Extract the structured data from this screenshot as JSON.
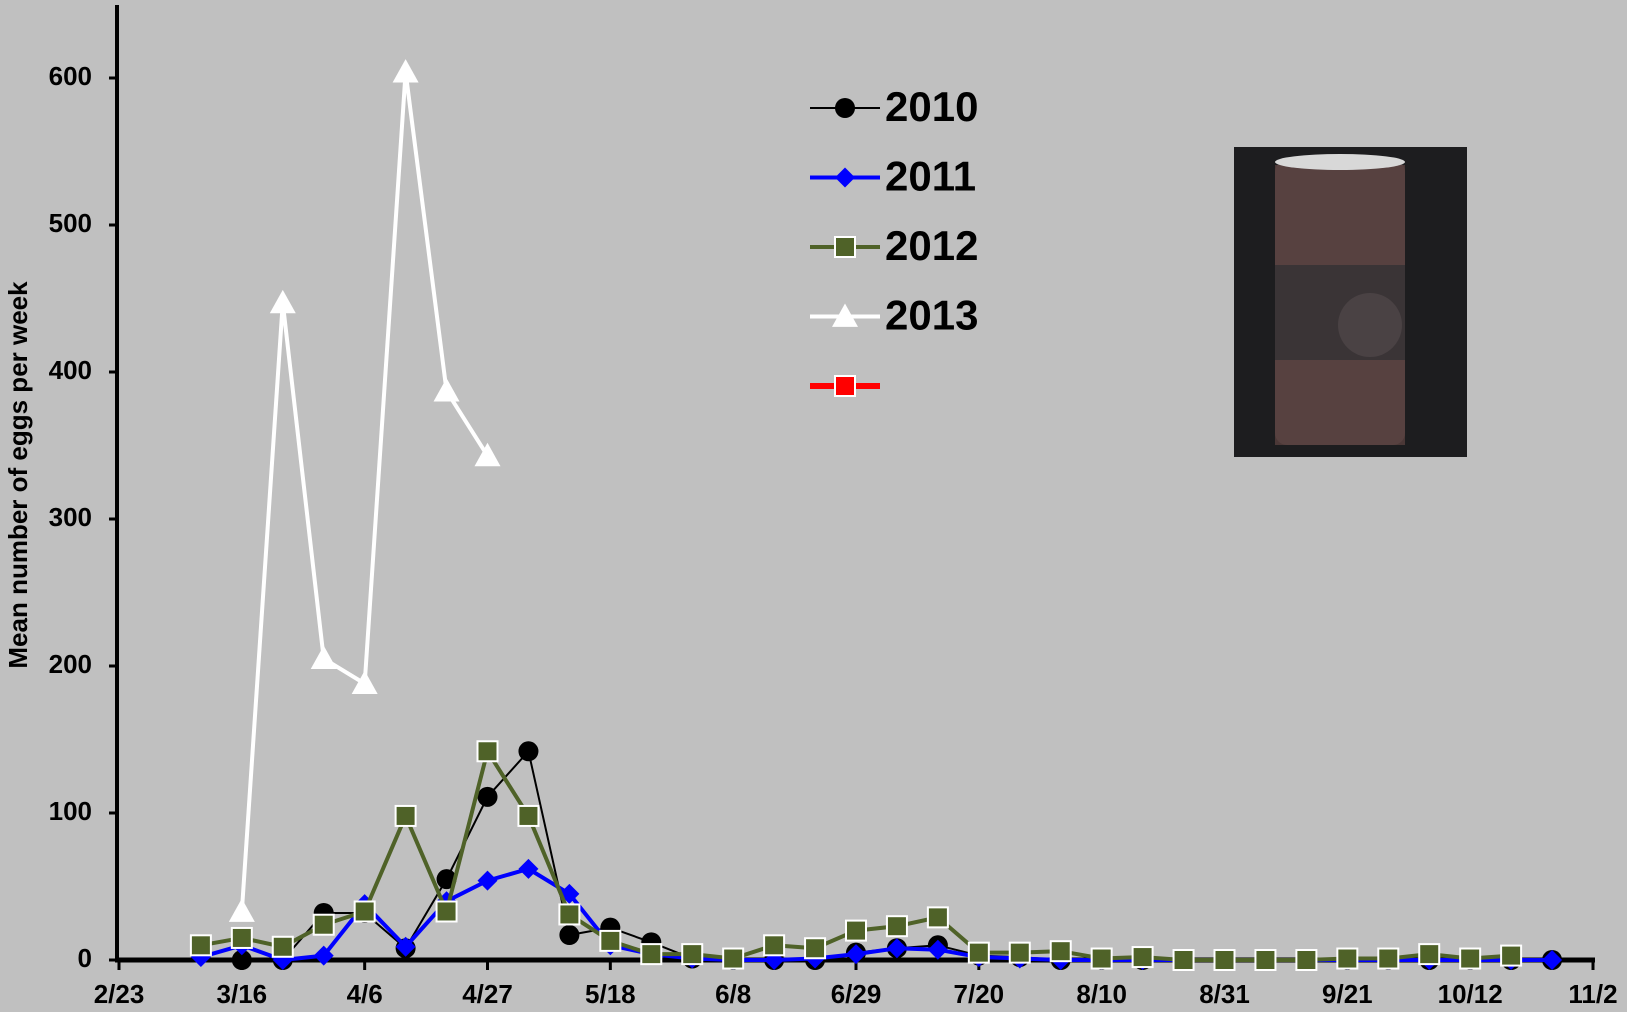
{
  "chart_data": {
    "type": "line",
    "y_label": "Mean number of eggs per week",
    "x": [
      "3/9",
      "3/16",
      "3/23",
      "3/30",
      "4/6",
      "4/13",
      "4/20",
      "4/27",
      "5/4",
      "5/11",
      "5/18",
      "5/25",
      "6/1",
      "6/8",
      "6/15",
      "6/22",
      "6/29",
      "7/6",
      "7/13",
      "7/20",
      "7/27",
      "8/3",
      "8/10",
      "8/17",
      "8/24",
      "8/31",
      "9/7",
      "9/14",
      "9/21",
      "9/28",
      "10/5",
      "10/12",
      "10/19",
      "10/26"
    ],
    "xlim": [
      "2/23",
      "11/2"
    ],
    "xticks": [
      "2/23",
      "3/16",
      "4/6",
      "4/27",
      "5/18",
      "6/8",
      "6/29",
      "7/20",
      "8/10",
      "8/31",
      "9/21",
      "10/12",
      "11/2"
    ],
    "ylim": [
      0,
      600
    ],
    "yticks": [
      0,
      100,
      200,
      300,
      400,
      500,
      600
    ],
    "grid": false,
    "legend": "top-center",
    "series": [
      {
        "name": "2010",
        "color": "#000000",
        "marker": "circle",
        "values": [
          null,
          0,
          0,
          32,
          32,
          8,
          55,
          111,
          142,
          17,
          22,
          12,
          1,
          0,
          0,
          0,
          5,
          8,
          10,
          3,
          2,
          0,
          0,
          0,
          0,
          0,
          0,
          0,
          0,
          0,
          0,
          0,
          0,
          0
        ]
      },
      {
        "name": "2011",
        "color": "#0000ff",
        "marker": "diamond",
        "values": [
          2,
          10,
          0,
          3,
          38,
          9,
          40,
          54,
          62,
          45,
          10,
          4,
          1,
          0,
          0,
          1,
          4,
          8,
          7,
          2,
          1,
          0,
          0,
          0,
          0,
          0,
          0,
          0,
          0,
          0,
          0,
          0,
          0,
          0
        ]
      },
      {
        "name": "2012",
        "color": "#4f6228",
        "marker": "square",
        "values": [
          10,
          15,
          9,
          24,
          33,
          98,
          33,
          142,
          98,
          31,
          13,
          4,
          4,
          1,
          10,
          8,
          20,
          23,
          29,
          5,
          5,
          6,
          1,
          2,
          0,
          0,
          0,
          0,
          1,
          1,
          4,
          1,
          3,
          null
        ]
      },
      {
        "name": "2013",
        "color": "#ffffff",
        "marker": "triangle",
        "values": [
          null,
          33,
          447,
          205,
          188,
          604,
          387,
          343,
          null,
          null,
          null,
          null,
          null,
          null,
          null,
          null,
          null,
          null,
          null,
          null,
          null,
          null,
          null,
          null,
          null,
          null,
          null,
          null,
          null,
          null,
          null,
          null,
          null,
          null
        ]
      },
      {
        "color": "#ff0000",
        "marker": "square"
      }
    ]
  }
}
